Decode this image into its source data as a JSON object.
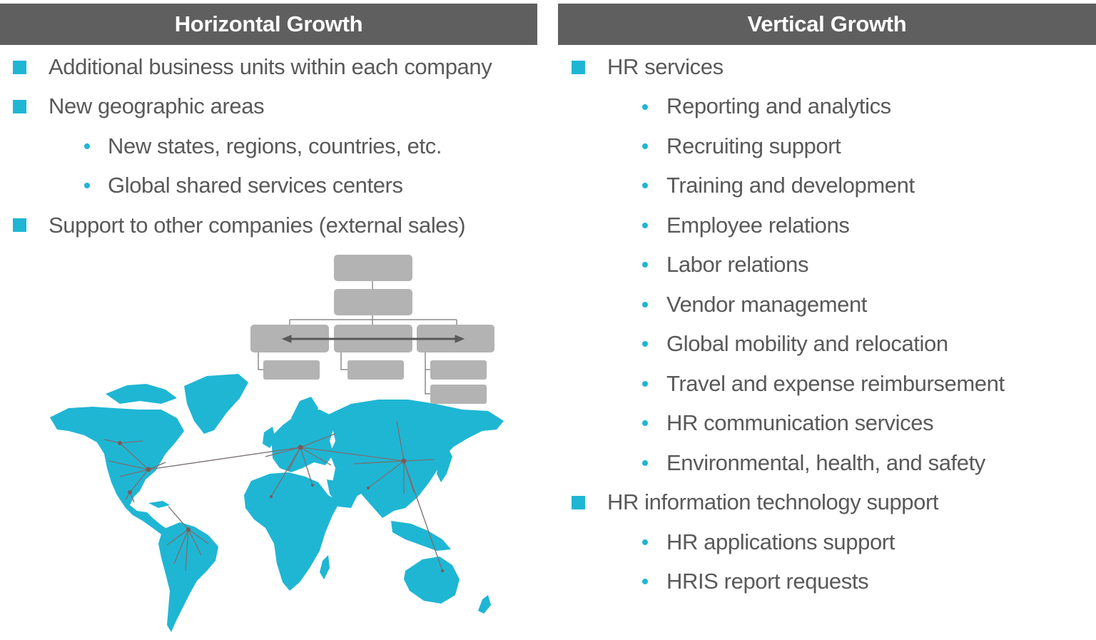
{
  "left": {
    "title": "Horizontal Growth",
    "items": [
      "Additional business units within each company",
      "New geographic areas",
      "New states, regions, countries, etc.",
      "Global shared services centers",
      "Support to other companies (external sales)"
    ]
  },
  "right": {
    "title": "Vertical Growth",
    "items": [
      "HR services",
      "Reporting and analytics",
      "Recruiting support",
      "Training and development",
      "Employee relations",
      "Labor relations",
      "Vendor management",
      "Global mobility and relocation",
      "Travel and expense reimbursement",
      "HR communication services",
      "Environmental, health, and safety",
      "HR information technology support",
      "HR applications support",
      "HRIS report requests"
    ]
  },
  "colors": {
    "header_bg": "#5f5f60",
    "accent": "#1fb6d4",
    "text": "#595959",
    "org_box": "#b3b3b3",
    "network_line": "#7a6e6e"
  },
  "icons": [
    "square-bullet-icon",
    "round-bullet-icon",
    "org-chart-icon",
    "world-map-icon",
    "network-icon"
  ]
}
